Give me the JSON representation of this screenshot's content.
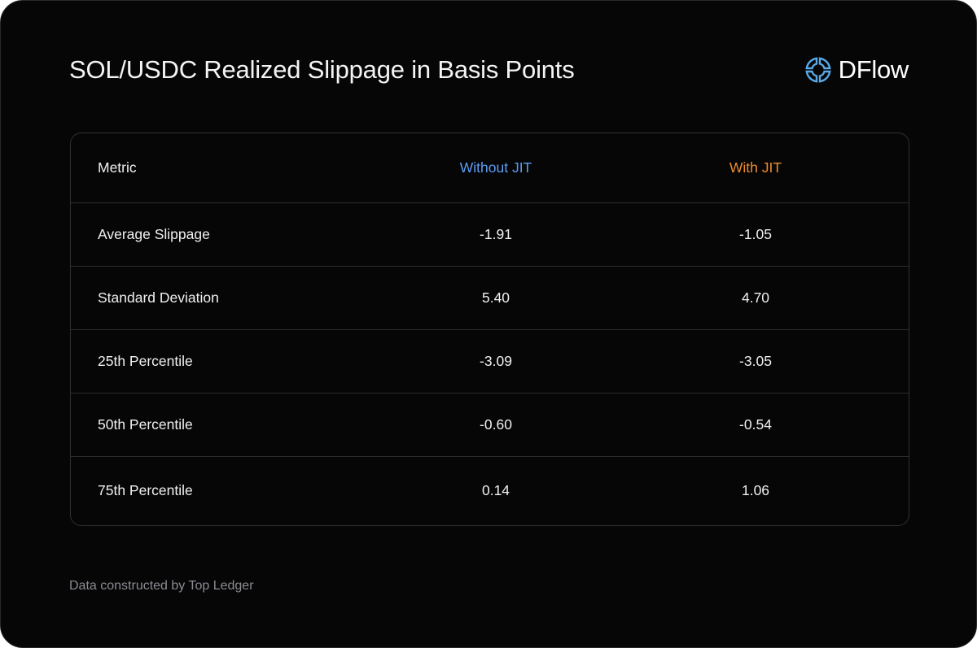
{
  "chart_data": {
    "type": "table",
    "title": "SOL/USDC Realized Slippage in Basis Points",
    "columns": [
      "Metric",
      "Without JIT",
      "With JIT"
    ],
    "rows": [
      {
        "metric": "Average Slippage",
        "without_jit": "-1.91",
        "with_jit": "-1.05"
      },
      {
        "metric": "Standard Deviation",
        "without_jit": "5.40",
        "with_jit": "4.70"
      },
      {
        "metric": "25th Percentile",
        "without_jit": "-3.09",
        "with_jit": "-3.05"
      },
      {
        "metric": "50th Percentile",
        "without_jit": "-0.60",
        "with_jit": "-0.54"
      },
      {
        "metric": "75th Percentile",
        "without_jit": "0.14",
        "with_jit": "1.06"
      }
    ]
  },
  "brand": {
    "name": "DFlow",
    "icon": "dflow-logo-icon",
    "color": "#5aa9e6"
  },
  "footer": {
    "source": "Data constructed by Top Ledger"
  },
  "colors": {
    "background": "#060607",
    "without_jit": "#5b9cf0",
    "with_jit": "#ec8c2d"
  }
}
